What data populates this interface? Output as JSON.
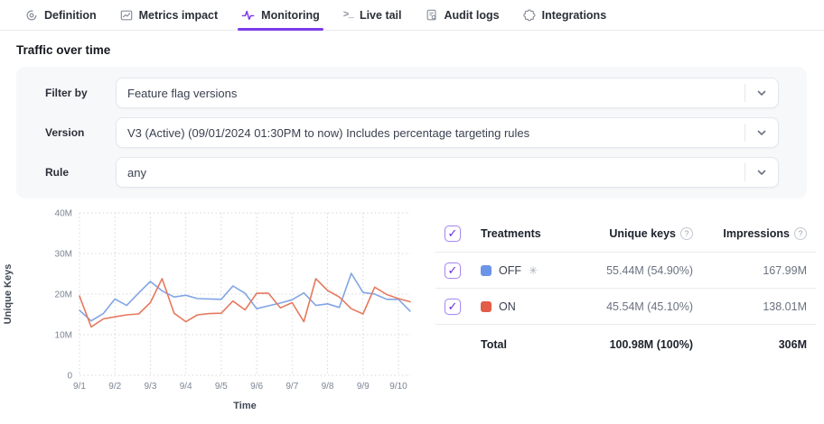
{
  "tabs": [
    {
      "label": "Definition",
      "icon": "target-icon",
      "active": false
    },
    {
      "label": "Metrics impact",
      "icon": "chart-box-icon",
      "active": false
    },
    {
      "label": "Monitoring",
      "icon": "pulse-icon",
      "active": true
    },
    {
      "label": "Live tail",
      "icon": "terminal-icon",
      "active": false
    },
    {
      "label": "Audit logs",
      "icon": "document-search-icon",
      "active": false
    },
    {
      "label": "Integrations",
      "icon": "puzzle-icon",
      "active": false
    }
  ],
  "section_title": "Traffic over time",
  "filters": [
    {
      "label": "Filter by",
      "value": "Feature flag versions"
    },
    {
      "label": "Version",
      "value": "V3 (Active) (09/01/2024 01:30PM to now) Includes percentage targeting rules"
    },
    {
      "label": "Rule",
      "value": "any"
    }
  ],
  "colors": {
    "accent": "#7c3aed",
    "off_swatch": "#6b95e8",
    "off_line": "#82a5e4",
    "on_swatch": "#e25c48",
    "on_line": "#e6795f"
  },
  "chart_data": {
    "type": "line",
    "xlabel": "Time",
    "ylabel": "Unique Keys",
    "ylim": [
      0,
      40
    ],
    "yticks": [
      0,
      10,
      20,
      30,
      40
    ],
    "ytick_labels": [
      "0",
      "10M",
      "20M",
      "30M",
      "40M"
    ],
    "xticks": [
      1,
      2,
      3,
      4,
      5,
      6,
      7,
      8,
      9,
      10
    ],
    "xtick_labels": [
      "9/1",
      "9/2",
      "9/3",
      "9/4",
      "9/5",
      "9/6",
      "9/7",
      "9/8",
      "9/9",
      "9/10"
    ],
    "grid": "dotted",
    "legend_position": "none",
    "x": [
      1,
      1.33,
      1.67,
      2,
      2.33,
      2.67,
      3,
      3.33,
      3.67,
      4,
      4.33,
      4.67,
      5,
      5.33,
      5.67,
      6,
      6.33,
      6.67,
      7,
      7.33,
      7.67,
      8,
      8.33,
      8.67,
      9,
      9.33,
      9.67,
      10,
      10.33
    ],
    "series": [
      {
        "name": "OFF",
        "color": "#82a5e4",
        "values": [
          16.0,
          13.4,
          15.2,
          18.8,
          17.2,
          20.3,
          23.1,
          20.8,
          19.3,
          19.7,
          18.9,
          18.8,
          18.7,
          22.0,
          20.2,
          16.4,
          17.1,
          17.8,
          18.6,
          20.3,
          17.2,
          17.6,
          16.7,
          25.1,
          20.4,
          20.0,
          18.7,
          18.7,
          15.8
        ]
      },
      {
        "name": "ON",
        "color": "#e6795f",
        "values": [
          19.5,
          11.9,
          13.9,
          14.4,
          14.9,
          15.1,
          17.9,
          23.8,
          15.3,
          13.2,
          14.9,
          15.2,
          15.3,
          18.3,
          16.1,
          20.2,
          20.2,
          16.6,
          17.9,
          13.2,
          23.8,
          20.9,
          19.3,
          16.4,
          15.1,
          21.7,
          19.9,
          18.9,
          18.1
        ]
      }
    ],
    "units": "millions of unique keys"
  },
  "table": {
    "headers": {
      "treatments": "Treatments",
      "unique_keys": "Unique keys",
      "impressions": "Impressions"
    },
    "header_checked": true,
    "rows": [
      {
        "name": "OFF",
        "default_flag": true,
        "checked": true,
        "color": "#6b95e8",
        "unique_keys": "55.44M (54.90%)",
        "impressions": "167.99M"
      },
      {
        "name": "ON",
        "default_flag": false,
        "checked": true,
        "color": "#e25c48",
        "unique_keys": "45.54M (45.10%)",
        "impressions": "138.01M"
      }
    ],
    "total": {
      "label": "Total",
      "unique_keys": "100.98M (100%)",
      "impressions": "306M"
    }
  }
}
